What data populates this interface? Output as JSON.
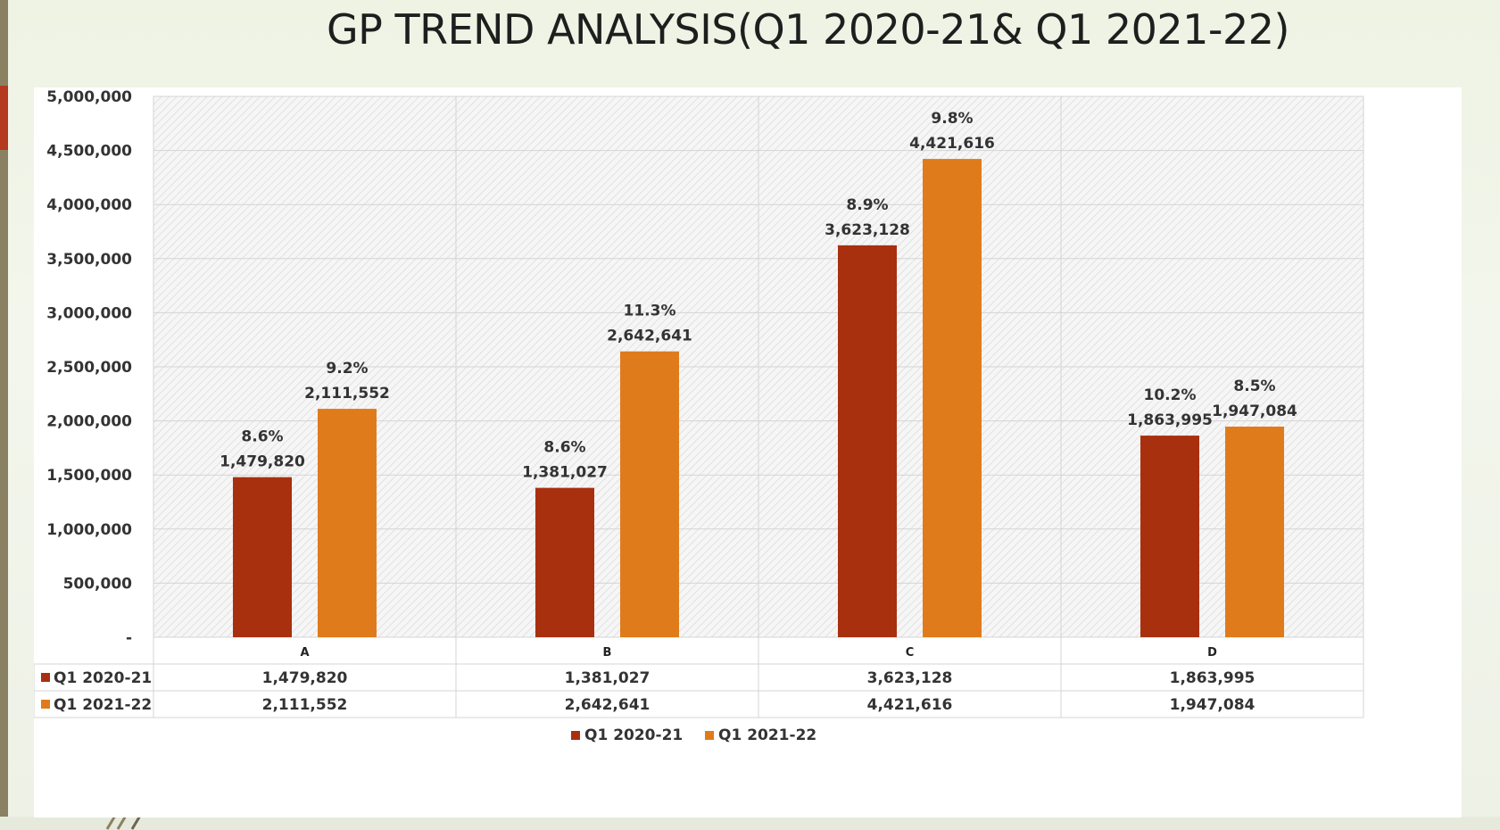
{
  "slide": {
    "title": "GP TREND ANALYSIS(Q1 2020-21& Q1 2021-22)"
  },
  "chart_data": {
    "type": "bar",
    "categories": [
      "A",
      "B",
      "C",
      "D"
    ],
    "series": [
      {
        "name": "Q1 2020-21",
        "color": "#a8300f",
        "values": [
          1479820,
          1381027,
          3623128,
          1863995
        ],
        "value_labels": [
          "1,479,820",
          "1,381,027",
          "3,623,128",
          "1,863,995"
        ],
        "percent_labels": [
          "8.6%",
          "8.6%",
          "8.9%",
          "10.2%"
        ]
      },
      {
        "name": "Q1 2021-22",
        "color": "#e07b1c",
        "values": [
          2111552,
          2642641,
          4421616,
          1947084
        ],
        "value_labels": [
          "2,111,552",
          "2,642,641",
          "4,421,616",
          "1,947,084"
        ],
        "percent_labels": [
          "9.2%",
          "11.3%",
          "9.8%",
          "8.5%"
        ]
      }
    ],
    "ylim": [
      0,
      5000000
    ],
    "yticks": [
      0,
      500000,
      1000000,
      1500000,
      2000000,
      2500000,
      3000000,
      3500000,
      4000000,
      4500000,
      5000000
    ],
    "ytick_labels": [
      "-",
      "500,000",
      "1,000,000",
      "1,500,000",
      "2,000,000",
      "2,500,000",
      "3,000,000",
      "3,500,000",
      "4,000,000",
      "4,500,000",
      "5,000,000"
    ],
    "grid": true,
    "data_table": true,
    "legend_position": "bottom"
  }
}
